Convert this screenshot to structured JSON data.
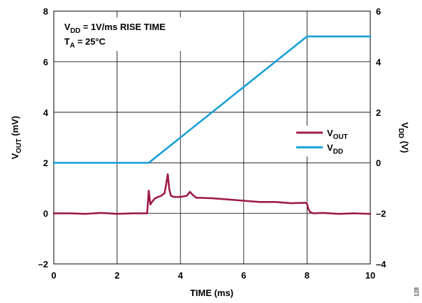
{
  "chart_data": {
    "type": "line",
    "xlabel": "TIME (ms)",
    "ylabel_left": {
      "main": "V",
      "sub": "OUT",
      "tail": " (mV)"
    },
    "ylabel_right": {
      "main": "V",
      "sub": "DD",
      "tail": " (V)"
    },
    "xlim": [
      0,
      10
    ],
    "ylim_left": [
      -2,
      8
    ],
    "ylim_right": [
      -4,
      6
    ],
    "x_ticks": [
      "0",
      "2",
      "4",
      "6",
      "8",
      "10"
    ],
    "y_left_ticks": [
      "–2",
      "0",
      "2",
      "4",
      "6",
      "8"
    ],
    "y_right_ticks": [
      "–4",
      "–2",
      "0",
      "2",
      "4",
      "6"
    ],
    "grid": true,
    "annotations": [
      {
        "main": "V",
        "sub": "DD",
        "tail": " = 1V/ms RISE TIME"
      },
      {
        "main": "T",
        "sub": "A",
        "tail": " = 25°C"
      }
    ],
    "legend_position": "center-right",
    "series": [
      {
        "name": {
          "main": "V",
          "sub": "OUT"
        },
        "axis": "left",
        "color": "#9e1b48",
        "x": [
          0,
          0.5,
          1,
          1.5,
          2,
          2.5,
          2.95,
          3.0,
          3.05,
          3.1,
          3.2,
          3.3,
          3.4,
          3.5,
          3.55,
          3.6,
          3.65,
          3.7,
          3.8,
          4.0,
          4.2,
          4.3,
          4.4,
          4.5,
          5,
          5.5,
          6,
          6.5,
          7,
          7.5,
          7.95,
          8.0,
          8.05,
          8.1,
          8.2,
          8.5,
          9,
          9.5,
          10
        ],
        "y": [
          0.0,
          0.0,
          -0.02,
          0.02,
          -0.02,
          0.0,
          0.0,
          0.9,
          0.35,
          0.45,
          0.6,
          0.65,
          0.7,
          0.8,
          1.15,
          1.55,
          0.95,
          0.7,
          0.65,
          0.65,
          0.7,
          0.85,
          0.72,
          0.62,
          0.6,
          0.55,
          0.5,
          0.45,
          0.45,
          0.4,
          0.42,
          0.38,
          0.15,
          0.05,
          0.0,
          0.02,
          -0.02,
          0.0,
          -0.02
        ]
      },
      {
        "name": {
          "main": "V",
          "sub": "DD"
        },
        "axis": "right",
        "color": "#1a9fd6",
        "x": [
          0,
          3,
          8,
          10
        ],
        "y": [
          0,
          0,
          5,
          5
        ]
      }
    ],
    "figure_number": "128"
  },
  "colors": {
    "grid": "#000000",
    "vout": "#9e1b48",
    "vdd": "#1a9fd6"
  }
}
